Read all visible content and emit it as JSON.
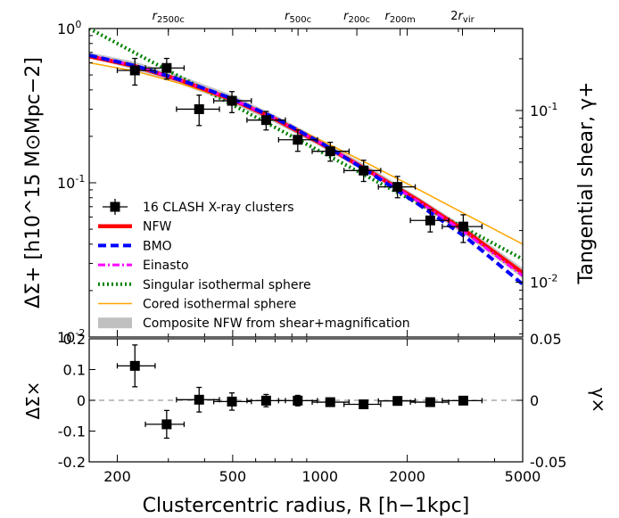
{
  "chart_data": [
    {
      "type": "line",
      "panel": "upper",
      "xscale": "log",
      "yscale": "log",
      "xlim": [
        160,
        5000
      ],
      "ylim": [
        0.01,
        1.0
      ],
      "right_ylim": [
        0.0048,
        0.3
      ],
      "ylabel": "ΔΣ+ [h10^15 M⊙Mpc−2]",
      "right_ylabel": "Tangential shear, γ+",
      "yticks": [
        {
          "value": 1.0,
          "label": "10^0"
        },
        {
          "value": 0.1,
          "label": "10^-1"
        },
        {
          "value": 0.01,
          "label": "10^-2"
        }
      ],
      "right_yticks": [
        {
          "value": 0.1,
          "label": "10^-1"
        },
        {
          "value": 0.01,
          "label": "10^-2"
        }
      ],
      "top_markers": [
        {
          "label": "r2500c",
          "x": 300
        },
        {
          "label": "r500c",
          "x": 840
        },
        {
          "label": "r200c",
          "x": 1340
        },
        {
          "label": "r200m",
          "x": 1890
        },
        {
          "label": "2rvir",
          "x": 3100
        }
      ],
      "band": {
        "name": "Composite NFW from shear+magnification",
        "color": "#c0c0c0",
        "x": [
          160,
          230,
          330,
          500,
          700,
          1000,
          1500,
          2200,
          3200,
          5000
        ],
        "low": [
          0.65,
          0.54,
          0.435,
          0.325,
          0.245,
          0.172,
          0.112,
          0.072,
          0.045,
          0.024
        ],
        "high": [
          0.7,
          0.61,
          0.495,
          0.37,
          0.275,
          0.192,
          0.125,
          0.08,
          0.051,
          0.028
        ]
      },
      "series": [
        {
          "name": "16 CLASH X-ray clusters",
          "style": "points",
          "color": "#000000",
          "x": [
            230,
            296,
            383,
            497,
            652,
            838,
            1085,
            1414,
            1851,
            2400,
            3120
          ],
          "y": [
            0.535,
            0.555,
            0.3,
            0.34,
            0.255,
            0.19,
            0.16,
            0.12,
            0.094,
            0.057,
            0.052
          ],
          "xerr_low": [
            200,
            250,
            320,
            430,
            560,
            720,
            940,
            1210,
            1590,
            2050,
            2640
          ],
          "xerr_high": [
            270,
            340,
            450,
            580,
            760,
            980,
            1260,
            1620,
            2130,
            2780,
            3620
          ],
          "yerr_low": [
            0.43,
            0.47,
            0.235,
            0.285,
            0.22,
            0.16,
            0.138,
            0.102,
            0.08,
            0.048,
            0.041
          ],
          "yerr_high": [
            0.64,
            0.64,
            0.37,
            0.39,
            0.29,
            0.22,
            0.183,
            0.14,
            0.11,
            0.067,
            0.062
          ]
        },
        {
          "name": "NFW",
          "style": "thick-solid",
          "color": "#ff0000",
          "x": [
            160,
            230,
            330,
            500,
            700,
            1000,
            1500,
            2200,
            3200,
            5000
          ],
          "y": [
            0.66,
            0.57,
            0.462,
            0.345,
            0.259,
            0.181,
            0.117,
            0.076,
            0.048,
            0.026
          ]
        },
        {
          "name": "BMO",
          "style": "dashed",
          "color": "#0000ff",
          "x": [
            160,
            230,
            330,
            500,
            700,
            1000,
            1500,
            2200,
            3200,
            5000
          ],
          "y": [
            0.67,
            0.575,
            0.465,
            0.35,
            0.263,
            0.183,
            0.115,
            0.072,
            0.044,
            0.022
          ]
        },
        {
          "name": "Einasto",
          "style": "dash-dot",
          "color": "#ff00ff",
          "x": [
            160,
            230,
            330,
            500,
            700,
            1000,
            1500,
            2200,
            3200,
            5000
          ],
          "y": [
            0.67,
            0.572,
            0.462,
            0.346,
            0.26,
            0.182,
            0.117,
            0.075,
            0.047,
            0.025
          ]
        },
        {
          "name": "Singular isothermal sphere",
          "style": "dotted",
          "color": "#008000",
          "x": [
            160,
            5000
          ],
          "y": [
            1.0,
            0.032
          ]
        },
        {
          "name": "Cored isothermal sphere",
          "style": "thin-solid",
          "color": "#ffa500",
          "x": [
            160,
            230,
            330,
            500,
            700,
            1000,
            1500,
            2200,
            3200,
            5000
          ],
          "y": [
            0.6,
            0.53,
            0.44,
            0.34,
            0.262,
            0.19,
            0.13,
            0.09,
            0.062,
            0.04
          ]
        }
      ],
      "legend": "lower-left"
    },
    {
      "type": "scatter",
      "panel": "lower",
      "xscale": "log",
      "xlim": [
        160,
        5000
      ],
      "ylim": [
        -0.2,
        0.2
      ],
      "right_ylim": [
        -0.05,
        0.05
      ],
      "xlabel": "Clustercentric radius, R [h−1kpc]",
      "ylabel": "ΔΣ×",
      "right_ylabel": "γ×",
      "xticks": [
        {
          "value": 200,
          "label": "200"
        },
        {
          "value": 500,
          "label": "500"
        },
        {
          "value": 1000,
          "label": "1000"
        },
        {
          "value": 2000,
          "label": "2000"
        },
        {
          "value": 5000,
          "label": "5000"
        }
      ],
      "yticks": [
        {
          "value": 0.2,
          "label": "0.2"
        },
        {
          "value": 0.1,
          "label": "0.1"
        },
        {
          "value": 0.0,
          "label": "0"
        },
        {
          "value": -0.1,
          "label": "-0.1"
        },
        {
          "value": -0.2,
          "label": "-0.2"
        }
      ],
      "right_yticks": [
        {
          "value": 0.05,
          "label": "0.05"
        },
        {
          "value": 0.0,
          "label": "0"
        },
        {
          "value": -0.05,
          "label": "-0.05"
        }
      ],
      "zero_line": true,
      "series": [
        {
          "name": "16 CLASH X-ray clusters",
          "color": "#000000",
          "x": [
            230,
            296,
            383,
            497,
            652,
            838,
            1085,
            1414,
            1851,
            2400,
            3120
          ],
          "y": [
            0.112,
            -0.078,
            0.002,
            -0.004,
            -0.001,
            -0.001,
            -0.006,
            -0.013,
            -0.002,
            -0.006,
            -0.001
          ],
          "yerr": [
            0.068,
            0.045,
            0.04,
            0.028,
            0.02,
            0.017,
            0.011,
            0.01,
            0.008,
            0.006,
            0.005
          ]
        }
      ]
    }
  ]
}
